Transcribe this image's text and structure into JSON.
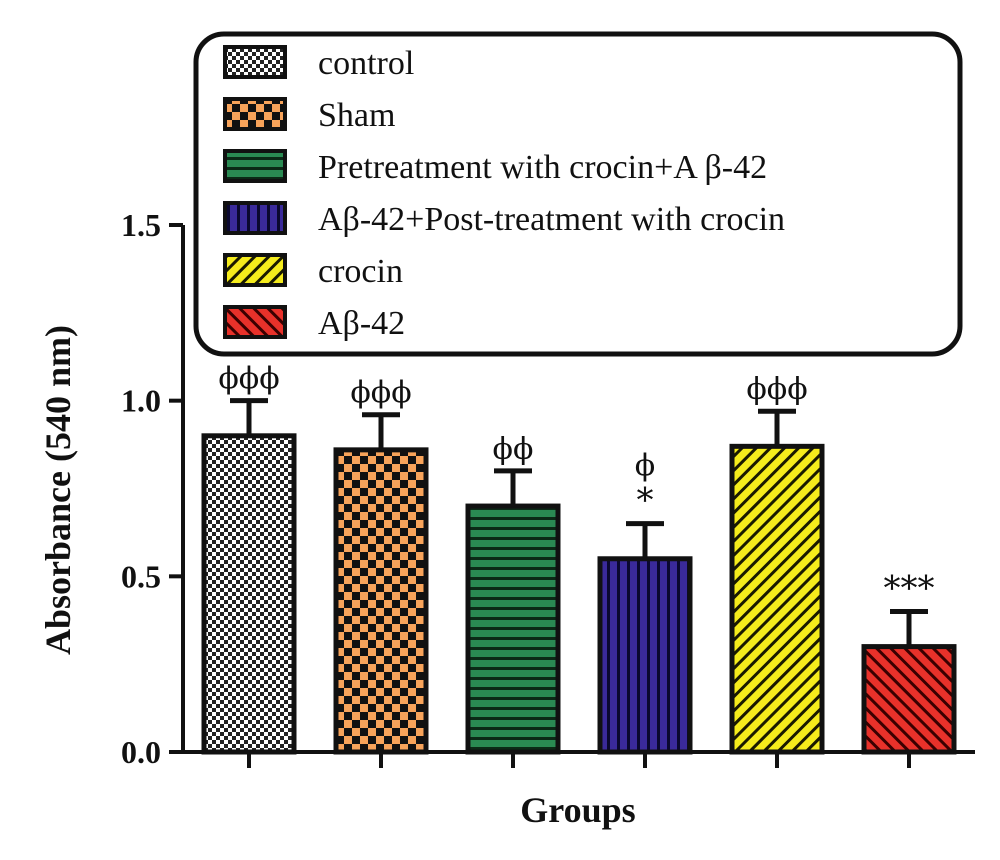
{
  "chart_data": {
    "type": "bar",
    "title": "",
    "xlabel": "Groups",
    "ylabel": "Absorbance (540 nm)",
    "ylim": [
      0,
      1.5
    ],
    "yticks": [
      "0.0",
      "0.5",
      "1.0",
      "1.5"
    ],
    "grid": false,
    "legend_position": "top-right",
    "categories": [
      "control",
      "Sham",
      "Pretreatment with crocin+A β-42",
      "Aβ-42+Post-treatment with crocin",
      "crocin",
      "Aβ-42"
    ],
    "values": [
      0.9,
      0.86,
      0.7,
      0.55,
      0.87,
      0.3
    ],
    "errors": [
      0.1,
      0.1,
      0.1,
      0.1,
      0.1,
      0.1
    ],
    "annotations": [
      [
        "ϕϕϕ"
      ],
      [
        "ϕϕϕ"
      ],
      [
        "ϕϕ"
      ],
      [
        "*",
        "ϕ"
      ],
      [
        "ϕϕϕ"
      ],
      [
        "***"
      ]
    ],
    "colors": [
      "#ffffff",
      "#f7a35a",
      "#2a8a52",
      "#3a2a9a",
      "#f5ec1c",
      "#e8312a"
    ],
    "patterns": [
      "fine-check",
      "coarse-check",
      "horizontal",
      "vertical",
      "diagonal",
      "back-diagonal"
    ]
  }
}
